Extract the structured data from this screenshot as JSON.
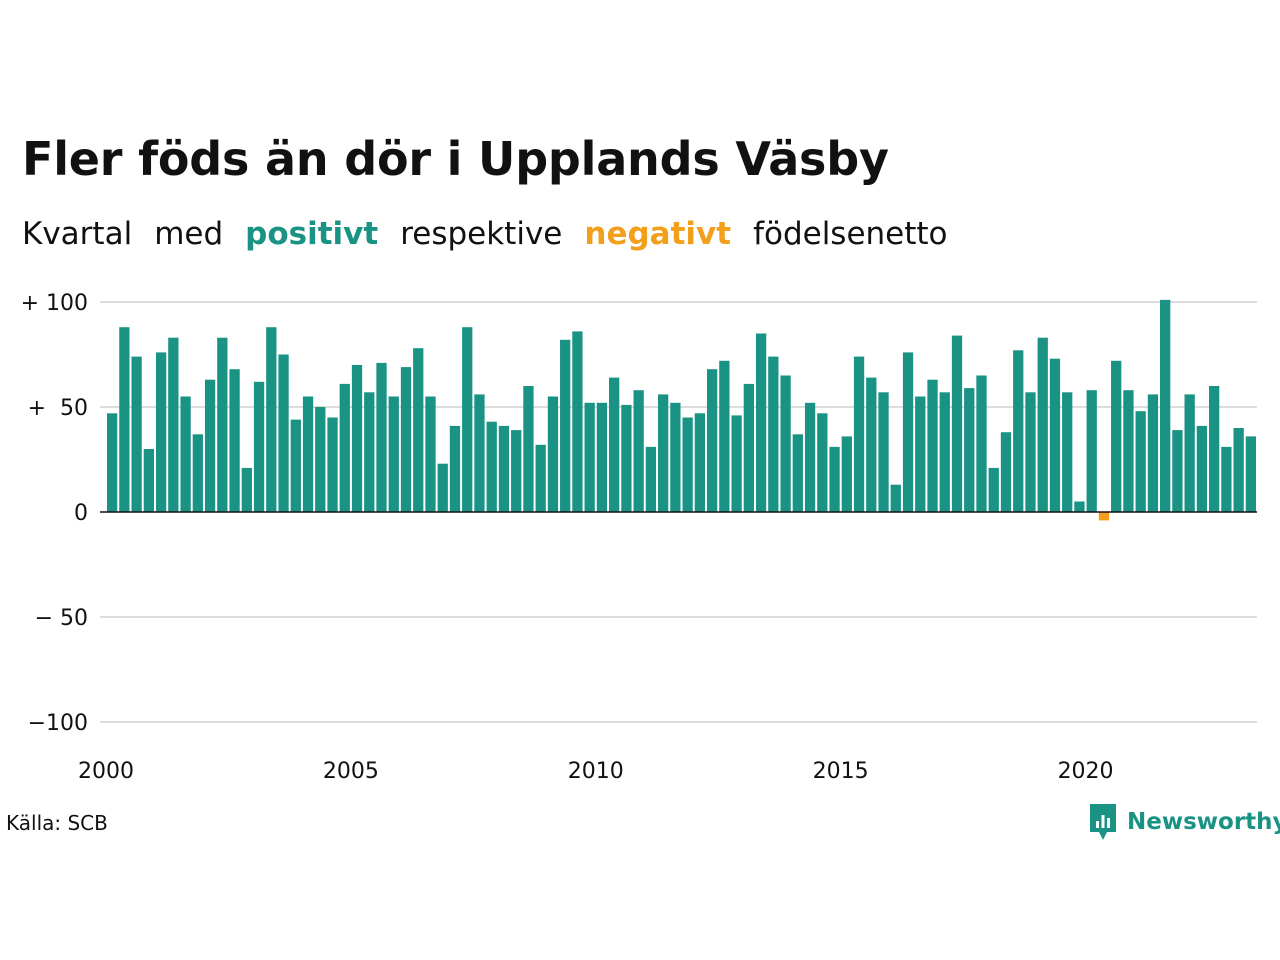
{
  "title": "Fler föds än dör i Upplands Väsby",
  "subtitle": {
    "w1": "Kvartal",
    "w2": "med",
    "positive": "positivt",
    "w3": "respektive",
    "negative": "negativt",
    "w4": "födelsenetto"
  },
  "source": "Källa: SCB",
  "brand": "Newsworthy",
  "colors": {
    "positive": "#1a9385",
    "negative": "#f2a01c",
    "grid": "#dddddd",
    "text": "#111111"
  },
  "chart_data": {
    "type": "bar",
    "x_start": 2000,
    "periods_per_year": 4,
    "ylim": [
      -100,
      100
    ],
    "ytick_labels": [
      "+ 100",
      "+  50",
      "0",
      "− 50",
      "−100"
    ],
    "ytick_values": [
      100,
      50,
      0,
      -50,
      -100
    ],
    "xtick_labels": [
      "2000",
      "2005",
      "2010",
      "2015",
      "2020"
    ],
    "xtick_values": [
      2000,
      2005,
      2010,
      2015,
      2020
    ],
    "grid": true,
    "values": [
      47,
      88,
      74,
      30,
      76,
      83,
      55,
      37,
      63,
      83,
      68,
      21,
      62,
      88,
      75,
      44,
      55,
      50,
      45,
      61,
      70,
      57,
      71,
      55,
      69,
      78,
      55,
      23,
      41,
      88,
      56,
      43,
      41,
      39,
      60,
      32,
      55,
      82,
      86,
      52,
      52,
      64,
      51,
      58,
      31,
      56,
      52,
      45,
      47,
      68,
      72,
      46,
      61,
      85,
      74,
      65,
      37,
      52,
      47,
      31,
      36,
      74,
      64,
      57,
      13,
      76,
      55,
      63,
      57,
      84,
      59,
      65,
      21,
      38,
      77,
      57,
      83,
      73,
      57,
      5,
      58,
      -4,
      72,
      58,
      48,
      56,
      101,
      39,
      56,
      41,
      60,
      31,
      40,
      36
    ]
  }
}
